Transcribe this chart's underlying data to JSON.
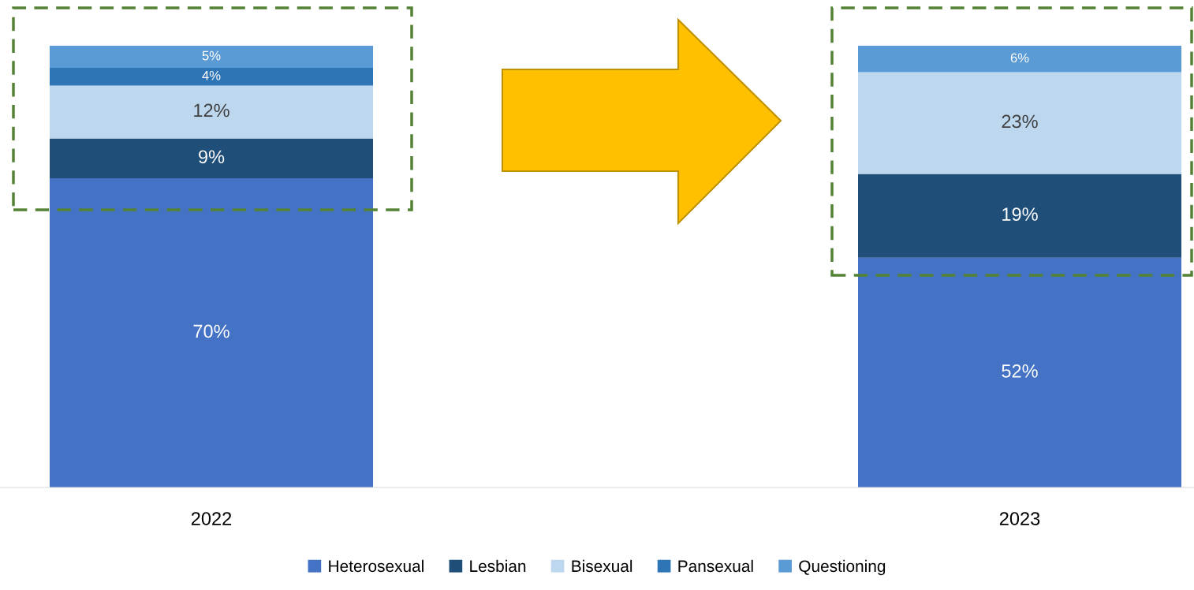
{
  "chart_data": {
    "type": "bar",
    "stacked": true,
    "categories": [
      "2022",
      "2023"
    ],
    "series": [
      {
        "name": "Heterosexual",
        "color": "#4472c4",
        "values": [
          70,
          52
        ],
        "value_labels": [
          "70%",
          "52%"
        ]
      },
      {
        "name": "Lesbian",
        "color": "#1f4e79",
        "values": [
          9,
          19
        ],
        "value_labels": [
          "9%",
          "19%"
        ]
      },
      {
        "name": "Bisexual",
        "color": "#bdd7ee",
        "values": [
          12,
          23
        ],
        "value_labels": [
          "12%",
          "23%"
        ]
      },
      {
        "name": "Pansexual",
        "color": "#2e75b6",
        "values": [
          4,
          null
        ],
        "value_labels": [
          "4%",
          null
        ]
      },
      {
        "name": "Questioning",
        "color": "#5b9bd5",
        "values": [
          5,
          6
        ],
        "value_labels": [
          "5%",
          "6%"
        ]
      }
    ],
    "legend": "bottom",
    "grid": false
  }
}
